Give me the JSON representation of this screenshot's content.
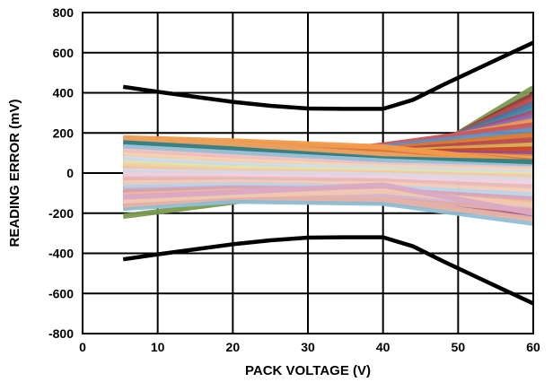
{
  "chart_data": {
    "type": "line",
    "title": "",
    "xlabel": "PACK VOLTAGE (V)",
    "ylabel": "READING ERROR (mV)",
    "xlim": [
      0,
      60
    ],
    "ylim": [
      -800,
      800
    ],
    "x_ticks": [
      0,
      10,
      20,
      30,
      40,
      50,
      60
    ],
    "y_ticks": [
      800,
      600,
      400,
      200,
      0,
      -200,
      -400,
      -600,
      -800
    ],
    "x_tick_labels": [
      "0",
      "10",
      "20",
      "30",
      "40",
      "50",
      "60"
    ],
    "y_tick_labels": [
      "800",
      "600",
      "400",
      "200",
      "0",
      "-200",
      "-400",
      "-600",
      "-800"
    ],
    "grid": true,
    "limit_color": "#000000",
    "limit_series": [
      {
        "x": [
          5.4,
          10,
          15,
          20,
          25,
          30,
          35,
          40,
          44,
          48,
          52,
          56,
          60
        ],
        "values": [
          430,
          405,
          380,
          355,
          335,
          322,
          320,
          320,
          365,
          440,
          510,
          580,
          650
        ]
      },
      {
        "x": [
          5.4,
          10,
          15,
          20,
          25,
          30,
          35,
          40,
          44,
          48,
          52,
          56,
          60
        ],
        "values": [
          -430,
          -405,
          -380,
          -355,
          -335,
          -322,
          -320,
          -320,
          -365,
          -440,
          -510,
          -580,
          -650
        ]
      }
    ],
    "device_series": [
      {
        "x": [
          5.4,
          20,
          40,
          60
        ],
        "values": [
          -215,
          -145,
          -30,
          425
        ],
        "color": "#7a9a4e"
      },
      {
        "x": [
          5.4,
          20,
          40,
          60
        ],
        "values": [
          -170,
          -100,
          0,
          390
        ],
        "color": "#8a3a3a"
      },
      {
        "x": [
          5.4,
          20,
          40,
          60
        ],
        "values": [
          -140,
          -70,
          20,
          370
        ],
        "color": "#c04b43"
      },
      {
        "x": [
          5.4,
          20,
          40,
          60
        ],
        "values": [
          -120,
          -60,
          40,
          345
        ],
        "color": "#4f6f9a"
      },
      {
        "x": [
          5.4,
          20,
          40,
          60
        ],
        "values": [
          -100,
          -30,
          60,
          320
        ],
        "color": "#3d8aa0"
      },
      {
        "x": [
          5.4,
          20,
          40,
          60
        ],
        "values": [
          -80,
          -10,
          80,
          300
        ],
        "color": "#a64d79"
      },
      {
        "x": [
          5.4,
          20,
          40,
          60
        ],
        "values": [
          -60,
          10,
          100,
          280
        ],
        "color": "#8c6bb1"
      },
      {
        "x": [
          5.4,
          20,
          40,
          60
        ],
        "values": [
          -40,
          30,
          120,
          260
        ],
        "color": "#e89a52"
      },
      {
        "x": [
          5.4,
          20,
          40,
          60
        ],
        "values": [
          -20,
          50,
          140,
          240
        ],
        "color": "#c9565a"
      },
      {
        "x": [
          5.4,
          20,
          40,
          60
        ],
        "values": [
          0,
          60,
          130,
          215
        ],
        "color": "#5e8fc4"
      },
      {
        "x": [
          5.4,
          20,
          40,
          60
        ],
        "values": [
          20,
          70,
          120,
          190
        ],
        "color": "#d9782d"
      },
      {
        "x": [
          5.4,
          20,
          40,
          60
        ],
        "values": [
          40,
          80,
          110,
          165
        ],
        "color": "#b7484b"
      },
      {
        "x": [
          5.4,
          20,
          40,
          60
        ],
        "values": [
          60,
          90,
          105,
          140
        ],
        "color": "#d4a94f"
      },
      {
        "x": [
          5.4,
          20,
          40,
          60
        ],
        "values": [
          80,
          95,
          100,
          120
        ],
        "color": "#cc4125"
      },
      {
        "x": [
          5.4,
          20,
          40,
          60
        ],
        "values": [
          100,
          110,
          100,
          95
        ],
        "color": "#8e4b8e"
      },
      {
        "x": [
          5.4,
          20,
          40,
          60
        ],
        "values": [
          120,
          125,
          100,
          80
        ],
        "color": "#e6883a"
      },
      {
        "x": [
          5.4,
          20,
          40,
          60
        ],
        "values": [
          140,
          140,
          110,
          70
        ],
        "color": "#f0a35b"
      },
      {
        "x": [
          5.4,
          20,
          40,
          60
        ],
        "values": [
          160,
          150,
          120,
          60
        ],
        "color": "#d9763c"
      },
      {
        "x": [
          5.4,
          20,
          40,
          60
        ],
        "values": [
          175,
          160,
          130,
          50
        ],
        "color": "#f29b4b"
      },
      {
        "x": [
          5.4,
          20,
          40,
          60
        ],
        "values": [
          165,
          145,
          90,
          40
        ],
        "color": "#e9a05f"
      },
      {
        "x": [
          5.4,
          20,
          40,
          60
        ],
        "values": [
          150,
          120,
          70,
          55
        ],
        "color": "#2e7f86"
      },
      {
        "x": [
          5.4,
          20,
          40,
          60
        ],
        "values": [
          130,
          100,
          60,
          30
        ],
        "color": "#9bc3d9"
      },
      {
        "x": [
          5.4,
          20,
          40,
          60
        ],
        "values": [
          110,
          80,
          40,
          20
        ],
        "color": "#f2c4c4"
      },
      {
        "x": [
          5.4,
          20,
          40,
          60
        ],
        "values": [
          90,
          60,
          30,
          10
        ],
        "color": "#f6d5b3"
      },
      {
        "x": [
          5.4,
          20,
          40,
          60
        ],
        "values": [
          70,
          40,
          20,
          0
        ],
        "color": "#c9dff0"
      },
      {
        "x": [
          5.4,
          20,
          40,
          60
        ],
        "values": [
          50,
          25,
          10,
          -10
        ],
        "color": "#e7e1a8"
      },
      {
        "x": [
          5.4,
          20,
          40,
          60
        ],
        "values": [
          30,
          10,
          0,
          -20
        ],
        "color": "#f4c9a6"
      },
      {
        "x": [
          5.4,
          20,
          40,
          60
        ],
        "values": [
          10,
          0,
          -10,
          -35
        ],
        "color": "#d8d8e8"
      },
      {
        "x": [
          5.4,
          20,
          40,
          60
        ],
        "values": [
          -10,
          -15,
          -25,
          -50
        ],
        "color": "#f1d1de"
      },
      {
        "x": [
          5.4,
          20,
          40,
          60
        ],
        "values": [
          -30,
          -30,
          -40,
          -70
        ],
        "color": "#e8b8b8"
      },
      {
        "x": [
          5.4,
          20,
          40,
          60
        ],
        "values": [
          -50,
          -45,
          -55,
          -90
        ],
        "color": "#f3cdb6"
      },
      {
        "x": [
          5.4,
          20,
          40,
          60
        ],
        "values": [
          -70,
          -60,
          -70,
          -110
        ],
        "color": "#b9d3ec"
      },
      {
        "x": [
          5.4,
          20,
          40,
          60
        ],
        "values": [
          -90,
          -75,
          -85,
          -130
        ],
        "color": "#d7a3b5"
      },
      {
        "x": [
          5.4,
          20,
          40,
          60
        ],
        "values": [
          -110,
          -90,
          -100,
          -150
        ],
        "color": "#f6b995"
      },
      {
        "x": [
          5.4,
          20,
          40,
          60
        ],
        "values": [
          -130,
          -105,
          -115,
          -170
        ],
        "color": "#cfb6da"
      },
      {
        "x": [
          5.4,
          20,
          40,
          60
        ],
        "values": [
          -150,
          -120,
          -130,
          -190
        ],
        "color": "#e0a9a4"
      },
      {
        "x": [
          5.4,
          20,
          40,
          60
        ],
        "values": [
          -165,
          -130,
          -145,
          -215
        ],
        "color": "#b06a88"
      },
      {
        "x": [
          5.4,
          20,
          40,
          60
        ],
        "values": [
          -175,
          -140,
          -150,
          -250
        ],
        "color": "#8fbfd4"
      },
      {
        "x": [
          5.4,
          20,
          40,
          60
        ],
        "values": [
          -160,
          -120,
          -130,
          -230
        ],
        "color": "#e7b3a8"
      },
      {
        "x": [
          5.4,
          20,
          40,
          60
        ],
        "values": [
          -140,
          -110,
          -90,
          -160
        ],
        "color": "#f0c8b0"
      },
      {
        "x": [
          5.4,
          20,
          40,
          60
        ],
        "values": [
          -120,
          -95,
          -60,
          -200
        ],
        "color": "#d9a9c4"
      }
    ]
  }
}
